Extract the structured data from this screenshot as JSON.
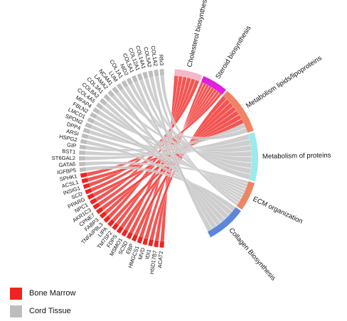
{
  "diagram": {
    "type": "chord",
    "colors": {
      "bone_marrow": "#f0231f",
      "cord_tissue": "#bdbdbd",
      "ribbon_bone_marrow": "#f2423f",
      "ribbon_cord_tissue": "#c6c6c6"
    },
    "genes_cord_tissue": [
      "Rfx3",
      "COL1A2",
      "COL5A2",
      "COL14A1",
      "COL12A1",
      "COL5A1",
      "NID2",
      "COL1A1",
      "LUM",
      "NCAM1",
      "LAMA2",
      "COL3A1",
      "COL8A2",
      "COL4A5",
      "MFAP4",
      "FBLN2",
      "LMCD1",
      "SPON2",
      "DPP4",
      "ARSI",
      "HSPG2",
      "GIP",
      "BST1",
      "ST6GAL2",
      "GATA6",
      "IGFBP5"
    ],
    "genes_bone_marrow": [
      "SPHK1",
      "ACSL1",
      "INSIG1",
      "SCD",
      "PPARG",
      "NPC1",
      "AKR1C3",
      "CPNE7",
      "FABP3",
      "TNFAIP8L3",
      "LIPA",
      "TM7SF2",
      "FDPS",
      "MSMO1",
      "SC5D",
      "EBP",
      "HMGCS1",
      "MVD",
      "IDI1",
      "HSD17B7",
      "ACAT2"
    ],
    "pathways": [
      {
        "label": "Cholesterol biosynthesis",
        "color": "#f4b8c8"
      },
      {
        "label": "Steroid biosynthesis",
        "color": "#e21fe0"
      },
      {
        "label": "Metabolism lipids/lipoproteins",
        "color": "#ee8464"
      },
      {
        "label": "Metabolism of proteins",
        "color": "#9ce9ef"
      },
      {
        "label": "ECM organization",
        "color": "#ee8464"
      },
      {
        "label": "Collagen Biosynthesis",
        "color": "#5c86dc"
      }
    ],
    "legend": [
      {
        "label": "Bone Marrow",
        "color": "#f0231f"
      },
      {
        "label": "Cord Tissue",
        "color": "#bdbdbd"
      }
    ]
  }
}
